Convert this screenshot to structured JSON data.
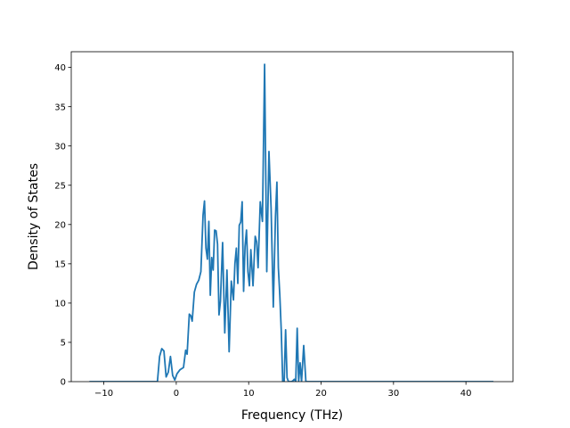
{
  "chart_data": {
    "type": "line",
    "title": "",
    "xlabel": "Frequency (THz)",
    "ylabel": "Density of States",
    "xlim": [
      -14.5,
      46.5
    ],
    "ylim": [
      0,
      42
    ],
    "xticks": [
      -10,
      0,
      10,
      20,
      30,
      40
    ],
    "yticks": [
      0,
      5,
      10,
      15,
      20,
      25,
      30,
      35,
      40
    ],
    "xtick_labels": [
      "−10",
      "0",
      "10",
      "20",
      "30",
      "40"
    ],
    "ytick_labels": [
      "0",
      "5",
      "10",
      "15",
      "20",
      "25",
      "30",
      "35",
      "40"
    ],
    "grid": false,
    "line_color": "#1f77b4",
    "series": [
      {
        "x": [
          -12.0,
          -2.6,
          -2.3,
          -2.0,
          -1.7,
          -1.4,
          -1.1,
          -0.8,
          -0.5,
          -0.2,
          0.1,
          0.5,
          1.0,
          1.3,
          1.5,
          1.8,
          2.0,
          2.2,
          2.5,
          2.8,
          3.1,
          3.4,
          3.7,
          3.9,
          4.1,
          4.3,
          4.5,
          4.7,
          4.9,
          5.1,
          5.3,
          5.5,
          5.7,
          5.9,
          6.1,
          6.4,
          6.7,
          7.0,
          7.3,
          7.6,
          7.9,
          8.1,
          8.3,
          8.5,
          8.7,
          8.9,
          9.1,
          9.3,
          9.5,
          9.7,
          9.9,
          10.1,
          10.3,
          10.6,
          10.9,
          11.1,
          11.3,
          11.6,
          11.9,
          12.2,
          12.5,
          12.8,
          13.1,
          13.4,
          13.7,
          13.9,
          14.1,
          14.3,
          14.5,
          14.7,
          14.9,
          15.1,
          15.3,
          15.5,
          15.7,
          15.9,
          16.1,
          16.3,
          16.5,
          16.7,
          16.9,
          17.1,
          17.3,
          17.6,
          17.9,
          18.1,
          18.3,
          18.6,
          18.9,
          19.5,
          20.3,
          20.8,
          21.1,
          21.5,
          21.8,
          22.0,
          22.2,
          22.4,
          22.6,
          22.8,
          23.0,
          23.2,
          23.4,
          23.7,
          24.0,
          30.0,
          43.8
        ],
        "y": [
          0,
          0,
          3.2,
          4.2,
          3.9,
          0.6,
          1.2,
          3.2,
          0.8,
          0.2,
          1.0,
          1.5,
          1.8,
          4.0,
          3.5,
          8.6,
          8.4,
          7.7,
          11.4,
          12.4,
          12.9,
          14.0,
          21.2,
          23.0,
          17.0,
          15.6,
          20.4,
          11.0,
          15.8,
          14.2,
          19.3,
          19.2,
          17.5,
          8.5,
          10.2,
          17.7,
          6.2,
          14.2,
          3.8,
          12.8,
          10.4,
          15.0,
          17.0,
          12.5,
          19.9,
          20.3,
          22.9,
          11.5,
          17.2,
          19.3,
          14.0,
          12.2,
          16.8,
          12.2,
          18.5,
          17.8,
          14.5,
          22.9,
          20.4,
          40.4,
          14.0,
          29.3,
          22.0,
          9.5,
          21.0,
          25.4,
          14.5,
          11.0,
          6.5,
          0,
          0,
          6.6,
          0.5,
          0,
          0,
          0,
          0.1,
          0.3,
          0,
          6.8,
          0,
          2.4,
          0,
          4.6,
          0,
          0,
          0,
          0,
          0,
          0,
          0,
          0,
          0,
          0,
          0,
          0,
          0,
          0,
          0,
          0,
          0,
          0,
          0,
          0,
          0,
          0,
          0
        ]
      }
    ]
  }
}
